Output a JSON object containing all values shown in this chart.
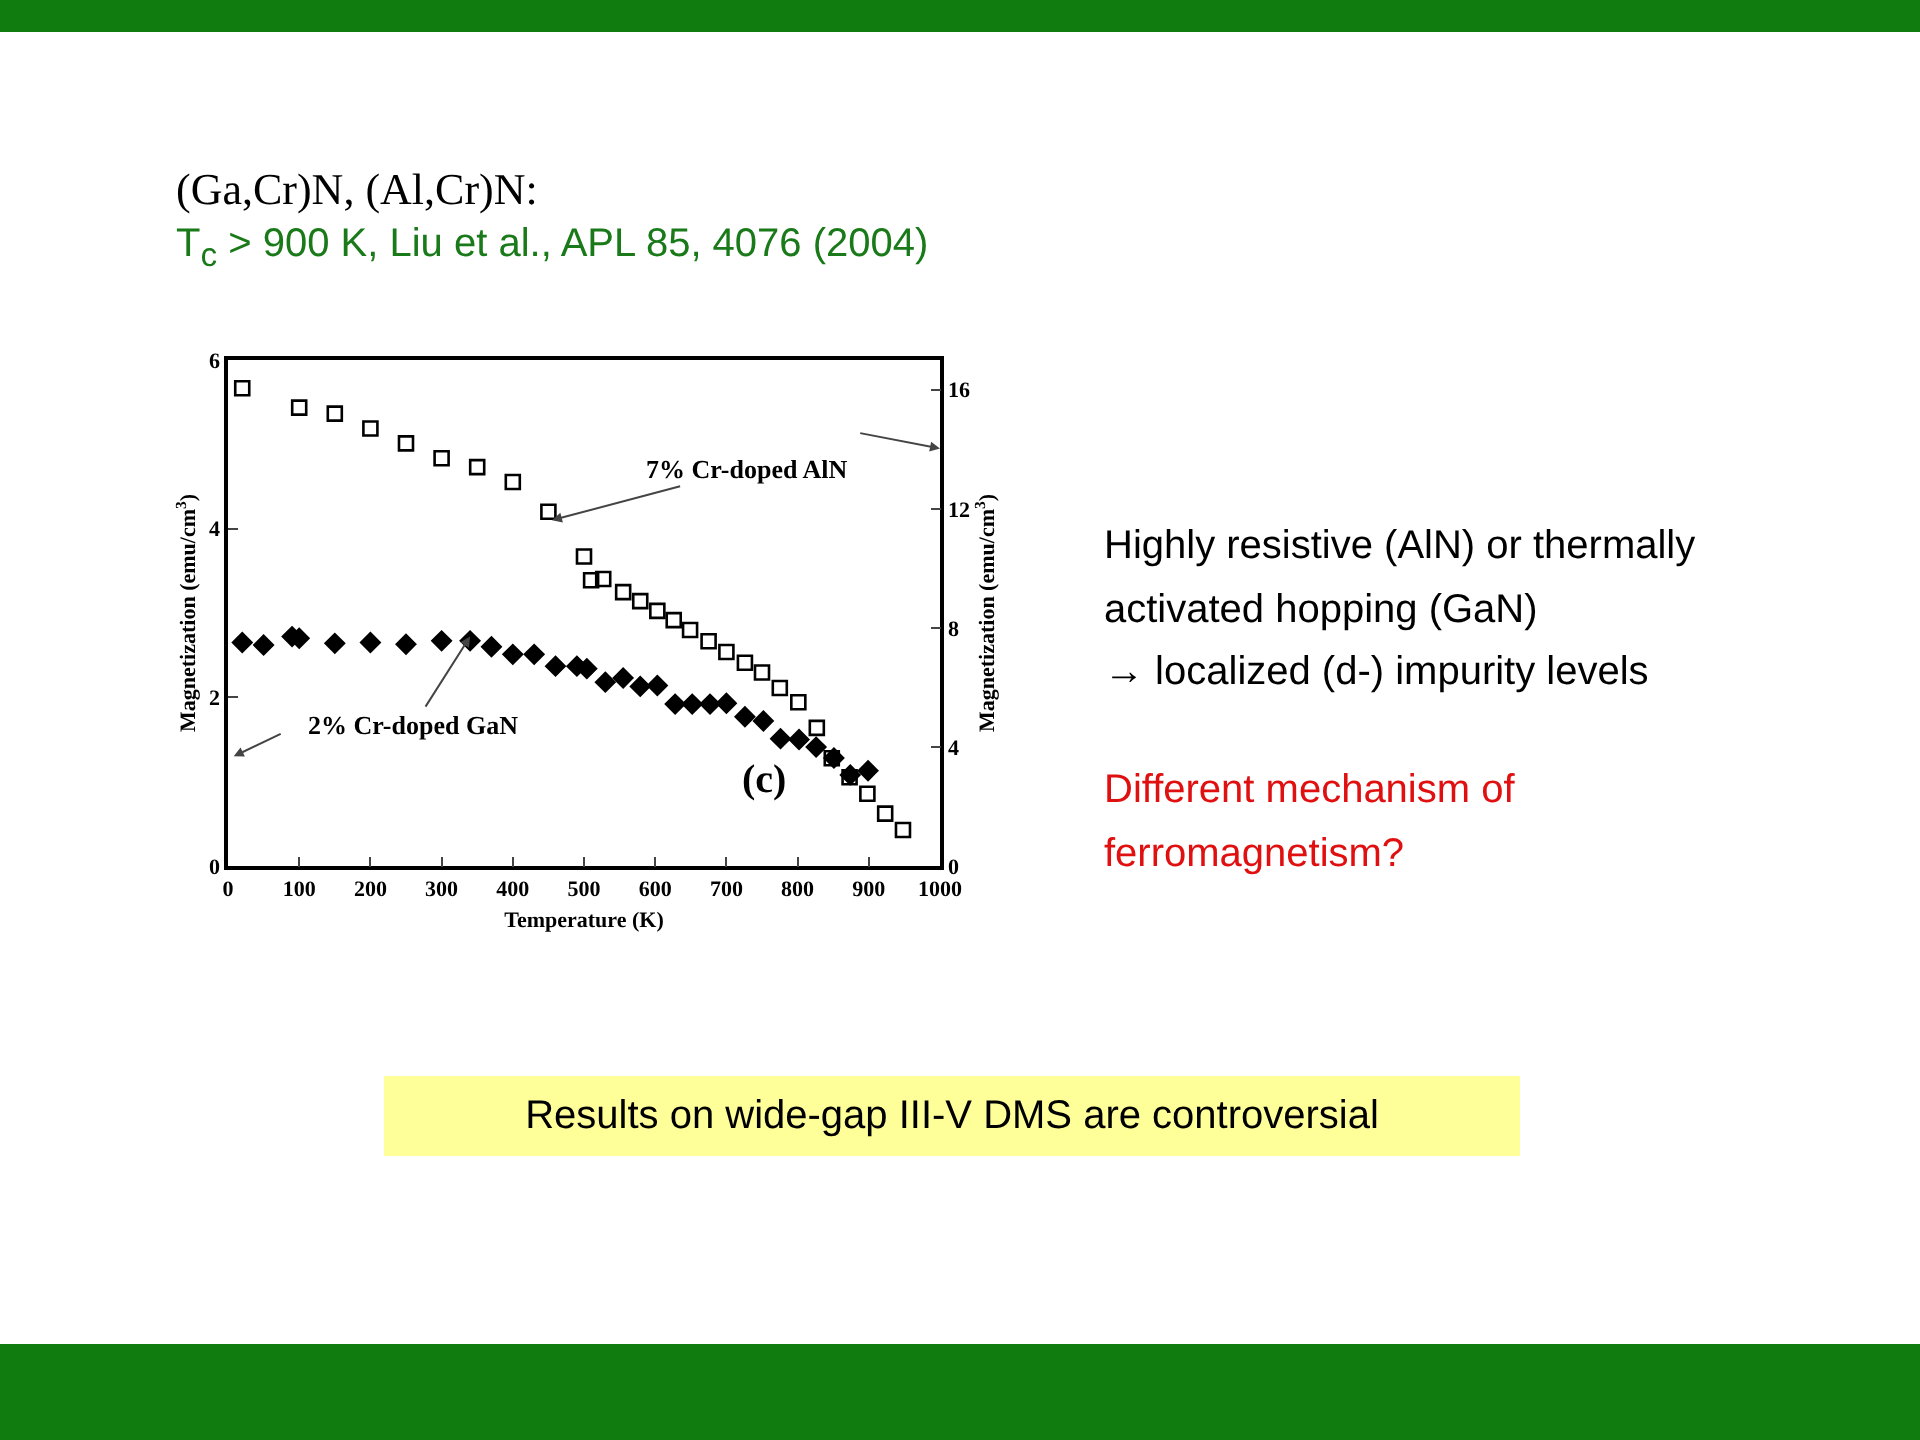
{
  "chart_data": {
    "type": "scatter",
    "title": "(Ga,Cr)N, (Al,Cr)N:",
    "subtitle": "T$_{c}$ > 900 K, Liu et al., APL 85, 4076 (2004)",
    "xlabel": "Temperature (K)",
    "ylabel": "Magnetization (emu/cm$^{3}$)",
    "y2label": "Magnetization (emu/cm$^{3}$)",
    "xlim": [
      0,
      1000
    ],
    "xticks": [
      0,
      100,
      200,
      300,
      400,
      500,
      600,
      700,
      800,
      900,
      1000
    ],
    "ylim": [
      0,
      6
    ],
    "yticks": [
      0,
      2,
      4,
      6
    ],
    "y2lim": [
      0,
      17
    ],
    "y2ticks": [
      0,
      4,
      8,
      12,
      16
    ],
    "grid": false,
    "legend": false,
    "series": [
      {
        "color": "#000000",
        "marker": "square",
        "axis": "y2",
        "x": [
          20,
          100,
          150,
          200,
          250,
          300,
          350,
          400,
          450,
          500,
          510,
          527,
          555,
          579,
          603,
          626,
          649,
          675,
          700,
          726,
          750,
          775,
          801,
          827,
          848,
          873,
          898,
          923,
          948
        ],
        "values": [
          16.05,
          15.4,
          15.2,
          14.7,
          14.2,
          13.7,
          13.4,
          12.9,
          11.9,
          10.4,
          9.6,
          9.64,
          9.2,
          8.9,
          8.57,
          8.26,
          7.93,
          7.55,
          7.19,
          6.83,
          6.5,
          5.98,
          5.5,
          4.64,
          3.62,
          2.98,
          2.43,
          1.76,
          1.21
        ]
      },
      {
        "color": "#000000",
        "marker": "diamond",
        "axis": "y",
        "x": [
          20,
          50,
          90,
          100,
          150,
          200,
          250,
          300,
          340,
          370,
          400,
          430,
          460,
          490,
          504,
          530,
          555,
          579,
          603,
          628,
          652,
          677,
          700,
          726,
          752,
          776,
          802,
          826,
          851,
          874,
          899
        ],
        "values": [
          2.65,
          2.62,
          2.72,
          2.7,
          2.64,
          2.65,
          2.63,
          2.67,
          2.67,
          2.6,
          2.51,
          2.51,
          2.37,
          2.37,
          2.34,
          2.18,
          2.23,
          2.13,
          2.14,
          1.92,
          1.92,
          1.92,
          1.93,
          1.77,
          1.72,
          1.51,
          1.5,
          1.41,
          1.28,
          1.08,
          1.13
        ]
      }
    ],
    "annotations": [
      {
        "text": "7% Cr-doped AlN",
        "x": 455,
        "y": 4.1
      },
      {
        "text": "2% Cr-doped GaN",
        "x": 340,
        "y": 2.72
      },
      "(c)",
      "Highly resistive (AlN) or thermally activated hopping (GaN)",
      "→ localized (d-) impurity levels",
      "Different mechanism of ferromagnetism?",
      "Results on wide-gap III-V DMS are controversial"
    ]
  }
}
